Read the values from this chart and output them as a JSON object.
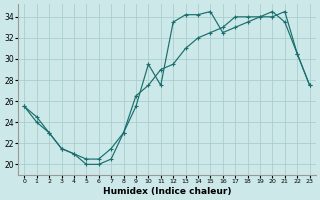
{
  "xlabel": "Humidex (Indice chaleur)",
  "bg_color": "#cce8e8",
  "grid_color": "#aacece",
  "line_color": "#1a6e6e",
  "xlim": [
    -0.5,
    23.5
  ],
  "ylim": [
    19.0,
    35.2
  ],
  "yticks": [
    20,
    22,
    24,
    26,
    28,
    30,
    32,
    34
  ],
  "xticks": [
    0,
    1,
    2,
    3,
    4,
    5,
    6,
    7,
    8,
    9,
    10,
    11,
    12,
    13,
    14,
    15,
    16,
    17,
    18,
    19,
    20,
    21,
    22,
    23
  ],
  "curve1_x": [
    0,
    1,
    2,
    3,
    4,
    5,
    6,
    7,
    8,
    9,
    10,
    11,
    12,
    13,
    14,
    15,
    16,
    17,
    18,
    19,
    20,
    21,
    22,
    23
  ],
  "curve1_y": [
    25.5,
    24.5,
    23.0,
    21.5,
    21.0,
    20.0,
    20.0,
    20.5,
    23.0,
    25.5,
    29.5,
    27.5,
    33.5,
    34.2,
    34.2,
    34.5,
    32.5,
    33.0,
    33.5,
    34.0,
    34.5,
    33.5,
    30.5,
    27.5
  ],
  "curve2_x": [
    0,
    1,
    2,
    3,
    4,
    5,
    6,
    7,
    8,
    9,
    10,
    11,
    12,
    13,
    14,
    15,
    16,
    17,
    18,
    19,
    20,
    21,
    22,
    23
  ],
  "curve2_y": [
    25.5,
    24.0,
    23.0,
    21.5,
    21.0,
    20.5,
    20.5,
    21.5,
    23.0,
    26.5,
    27.5,
    29.0,
    29.5,
    31.0,
    32.0,
    32.5,
    33.0,
    34.0,
    34.0,
    34.0,
    34.0,
    34.5,
    30.5,
    27.5
  ]
}
